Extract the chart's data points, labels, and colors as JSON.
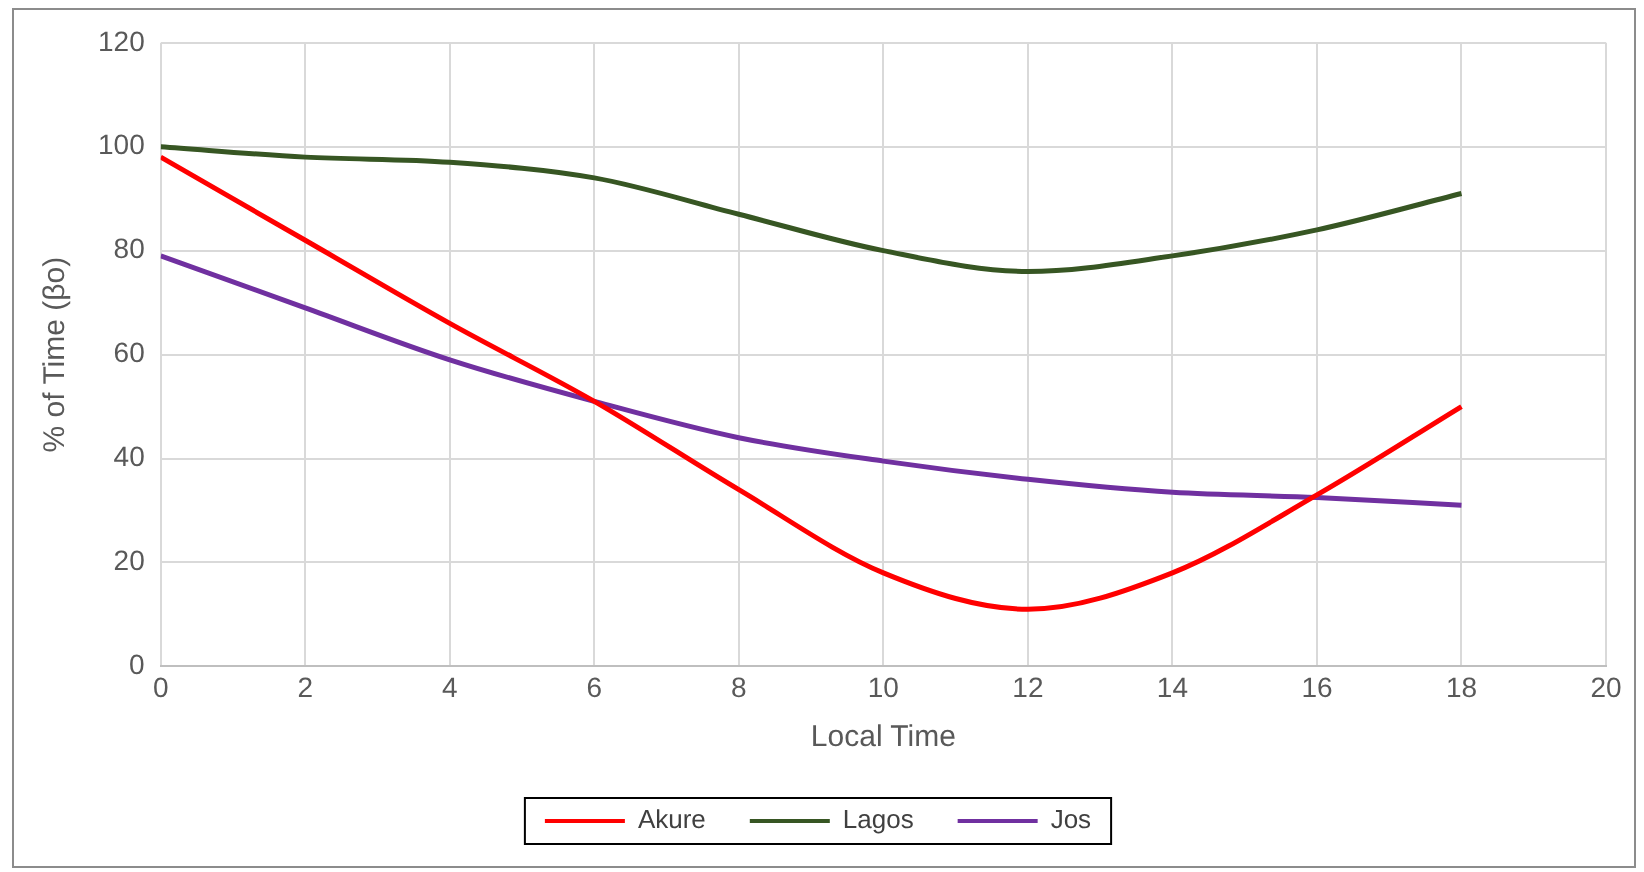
{
  "chart_data": {
    "type": "line",
    "xlabel": "Local Time",
    "ylabel": "% of Time (βo)",
    "x": [
      0,
      2,
      4,
      6,
      8,
      10,
      12,
      14,
      16,
      18
    ],
    "series": [
      {
        "name": "Akure",
        "color": "#ff0000",
        "values": [
          98,
          82,
          66,
          51,
          34,
          18,
          11,
          18,
          33,
          50
        ]
      },
      {
        "name": "Lagos",
        "color": "#375623",
        "values": [
          100,
          98,
          97,
          94,
          87,
          80,
          76,
          79,
          84,
          91
        ]
      },
      {
        "name": "Jos",
        "color": "#7030a0",
        "values": [
          79,
          69,
          59,
          51,
          44,
          39.5,
          36,
          33.5,
          32.5,
          31
        ]
      }
    ],
    "xlim": [
      0,
      20
    ],
    "xticks": [
      0,
      2,
      4,
      6,
      8,
      10,
      12,
      14,
      16,
      18,
      20
    ],
    "ylim": [
      0,
      120
    ],
    "yticks": [
      0,
      20,
      40,
      60,
      80,
      100,
      120
    ],
    "grid": true,
    "legend": "bottom",
    "marker": "none",
    "line_style": "solid"
  }
}
